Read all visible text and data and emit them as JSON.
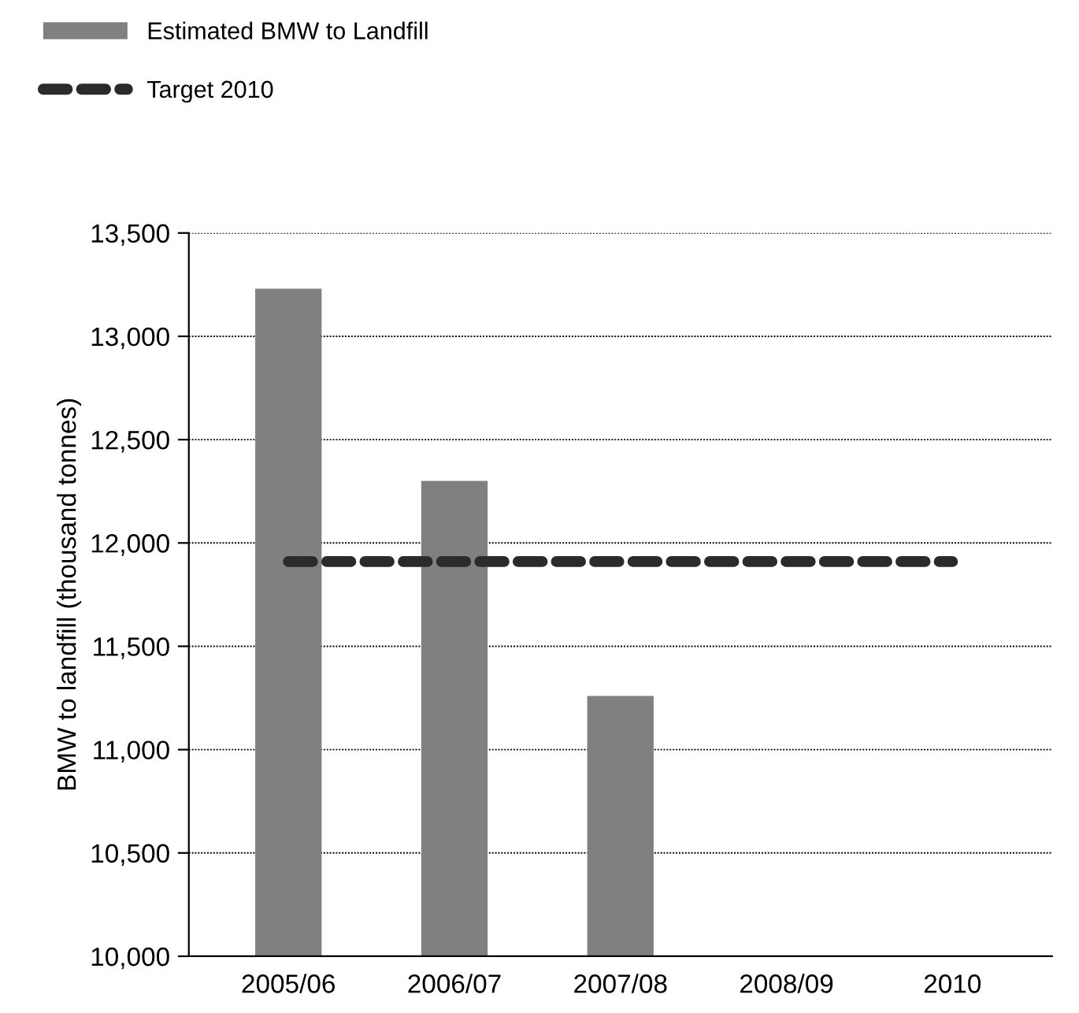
{
  "chart_data": {
    "type": "bar",
    "ylabel": "BMW to landfill (thousand tonnes)",
    "categories": [
      "2005/06",
      "2006/07",
      "2007/08",
      "2008/09",
      "2010"
    ],
    "series": [
      {
        "name": "Estimated BMW to Landfill",
        "color": "#808080",
        "values": [
          13230,
          12300,
          11260,
          null,
          null
        ]
      },
      {
        "name": "Target 2010",
        "type": "line",
        "color": "#2b2b2b",
        "line_style": "dashed",
        "values": [
          11910,
          11910,
          11910,
          11910,
          11910
        ]
      }
    ],
    "ylim": [
      10000,
      13500
    ],
    "yticks": [
      {
        "value": 10000,
        "label": "10,000"
      },
      {
        "value": 10500,
        "label": "10,500"
      },
      {
        "value": 11000,
        "label": "11,000"
      },
      {
        "value": 11500,
        "label": "11,500"
      },
      {
        "value": 12000,
        "label": "12,000"
      },
      {
        "value": 12500,
        "label": "12,500"
      },
      {
        "value": 13000,
        "label": "13,000"
      },
      {
        "value": 13500,
        "label": "13,500"
      }
    ],
    "grid": "y",
    "legend": "top left",
    "marker": "none"
  }
}
